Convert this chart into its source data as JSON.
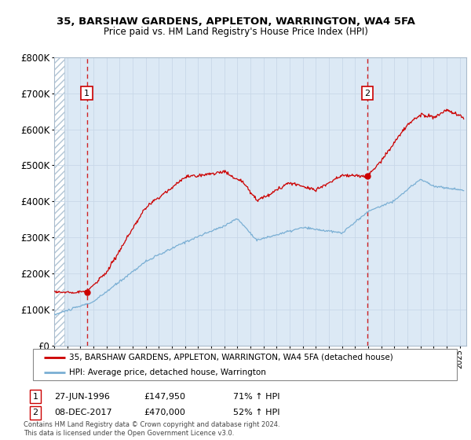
{
  "title1": "35, BARSHAW GARDENS, APPLETON, WARRINGTON, WA4 5FA",
  "title2": "Price paid vs. HM Land Registry's House Price Index (HPI)",
  "background_color": "#dce9f5",
  "plot_bg": "#dce9f5",
  "red_line_color": "#cc0000",
  "blue_line_color": "#7aafd4",
  "red_dot_color": "#cc0000",
  "grid_color": "#c8d8e8",
  "sale1_date": 1996.49,
  "sale1_price": 147950,
  "sale2_date": 2017.93,
  "sale2_price": 470000,
  "legend_label1": "35, BARSHAW GARDENS, APPLETON, WARRINGTON, WA4 5FA (detached house)",
  "legend_label2": "HPI: Average price, detached house, Warrington",
  "annotation1_date": "27-JUN-1996",
  "annotation1_price": "£147,950",
  "annotation1_hpi": "71% ↑ HPI",
  "annotation2_date": "08-DEC-2017",
  "annotation2_price": "£470,000",
  "annotation2_hpi": "52% ↑ HPI",
  "copyright_text": "Contains HM Land Registry data © Crown copyright and database right 2024.\nThis data is licensed under the Open Government Licence v3.0.",
  "xmin": 1994.0,
  "xmax": 2025.5,
  "ymin": 0,
  "ymax": 800000
}
